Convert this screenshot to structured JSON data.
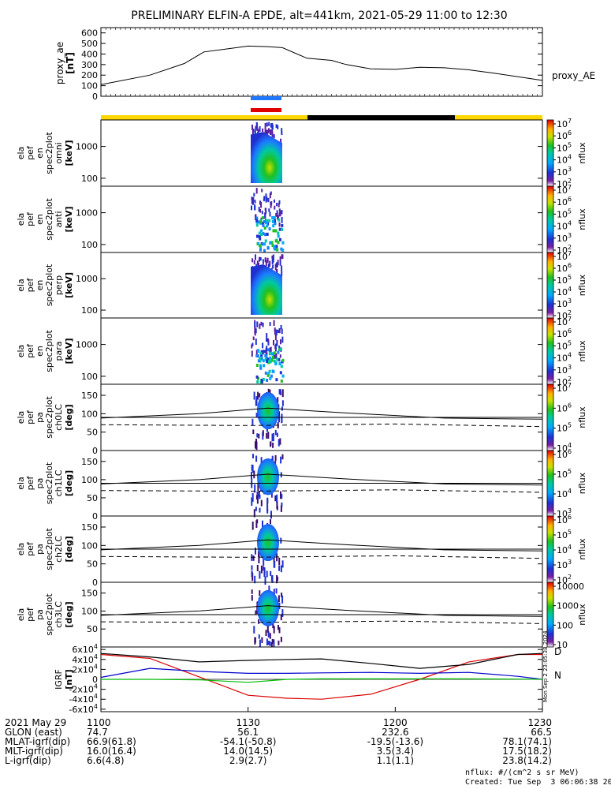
{
  "title": "PRELIMINARY ELFIN-A EPDE, alt=441km, 2021-05-29 11:00 to 12:30",
  "created": "Created: Tue Sep  3 06:06:38 2024",
  "nflux_units": "nflux: #/(cm^2 s sr MeV)",
  "side_stamp": "Mon Sep  2 23:05:38 2024",
  "colors": {
    "sunlit": "#ffd700",
    "eclipse": "#000000",
    "bar_blue": "#1e78ff",
    "bar_red": "#e00000",
    "bx": "#0000cc",
    "by": "#00bb00",
    "bz": "#dd0000",
    "bt": "#000000"
  },
  "chart_data": [
    {
      "type": "line",
      "panel": "proxy_ae",
      "ylabel": "proxy_ae\n[nT]",
      "legend": "proxy_AE",
      "ylim": [
        0,
        650
      ],
      "yticks": [
        "600",
        "500",
        "400",
        "300",
        "200",
        "100",
        "0"
      ],
      "x_minutes": [
        0,
        10,
        17,
        21,
        26,
        30,
        34,
        37,
        42,
        47,
        50,
        55,
        60,
        65,
        70,
        75,
        80,
        85,
        90
      ],
      "values": [
        110,
        200,
        310,
        420,
        450,
        475,
        470,
        460,
        360,
        340,
        300,
        260,
        255,
        275,
        270,
        250,
        220,
        185,
        150
      ]
    },
    {
      "type": "heatmap",
      "panel": "omni",
      "ylabel": [
        "ela",
        "pef",
        "en",
        "spec2plot",
        "omni",
        "[keV]"
      ],
      "yticks": [
        "1000",
        "100"
      ],
      "colorbar": {
        "label": "nflux",
        "ticks": [
          "10^7",
          "10^6",
          "10^5",
          "10^4",
          "10^3",
          "10^2"
        ]
      }
    },
    {
      "type": "heatmap",
      "panel": "anti",
      "ylabel": [
        "ela",
        "pef",
        "en",
        "spec2plot",
        "anti",
        "[keV]"
      ],
      "yticks": [
        "1000",
        "100"
      ],
      "colorbar": {
        "label": "nflux",
        "ticks": [
          "10^7",
          "10^6",
          "10^5",
          "10^4",
          "10^3",
          "10^2"
        ]
      }
    },
    {
      "type": "heatmap",
      "panel": "perp",
      "ylabel": [
        "ela",
        "pef",
        "en",
        "spec2plot",
        "perp",
        "[keV]"
      ],
      "yticks": [
        "1000",
        "100"
      ],
      "colorbar": {
        "label": "nflux",
        "ticks": [
          "10^7",
          "10^6",
          "10^5",
          "10^4",
          "10^3",
          "10^2"
        ]
      }
    },
    {
      "type": "heatmap",
      "panel": "para",
      "ylabel": [
        "ela",
        "pef",
        "en",
        "spec2plot",
        "para",
        "[keV]"
      ],
      "yticks": [
        "1000",
        "100"
      ],
      "colorbar": {
        "label": "nflux",
        "ticks": [
          "10^7",
          "10^6",
          "10^5",
          "10^4",
          "10^3",
          "10^2"
        ]
      }
    },
    {
      "type": "heatmap",
      "panel": "ch0LC",
      "ylabel": [
        "ela",
        "pef",
        "pa",
        "spec2plot",
        "ch0LC",
        "[deg]"
      ],
      "yticks": [
        "150",
        "100",
        "50",
        "0"
      ],
      "colorbar": {
        "label": "nflux",
        "ticks": [
          "10^7",
          "10^6",
          "10^5",
          "10^4"
        ]
      }
    },
    {
      "type": "heatmap",
      "panel": "ch1LC",
      "ylabel": [
        "ela",
        "pef",
        "pa",
        "spec2plot",
        "ch1LC",
        "[deg]"
      ],
      "yticks": [
        "150",
        "100",
        "50",
        "0"
      ],
      "colorbar": {
        "label": "nflux",
        "ticks": [
          "10^6",
          "10^5",
          "10^4",
          "10^3"
        ]
      }
    },
    {
      "type": "heatmap",
      "panel": "ch2LC",
      "ylabel": [
        "ela",
        "pef",
        "pa",
        "spec2plot",
        "ch2LC",
        "[deg]"
      ],
      "yticks": [
        "150",
        "100",
        "50",
        "0"
      ],
      "colorbar": {
        "label": "nflux",
        "ticks": [
          "10^6",
          "10^5",
          "10^4",
          "10^3",
          "10^2"
        ]
      }
    },
    {
      "type": "heatmap",
      "panel": "ch3LC",
      "ylabel": [
        "ela",
        "pef",
        "pa",
        "spec2plot",
        "ch3LC",
        "[deg]"
      ],
      "yticks": [
        "150",
        "100",
        "50"
      ],
      "colorbar": {
        "label": "nflux",
        "ticks": [
          "10000",
          "1000",
          "100",
          "10"
        ]
      }
    },
    {
      "type": "line",
      "panel": "igrf",
      "ylabel": [
        "IGRF",
        "[nT]"
      ],
      "ylim": [
        -65000,
        65000
      ],
      "yticks": [
        "6x10^4",
        "4x10^4",
        "2x10^4",
        "0",
        "-2x10^4",
        "-4x10^4",
        "-6x10^4"
      ],
      "legend_letters": [
        "D",
        "N"
      ],
      "x_minutes": [
        0,
        10,
        20,
        30,
        38,
        45,
        55,
        65,
        75,
        85,
        90
      ],
      "series": [
        {
          "values_key": "bz",
          "values": [
            50000,
            42000,
            5000,
            -32000,
            -38000,
            -40000,
            -30000,
            0,
            35000,
            50000,
            50000
          ]
        },
        {
          "values_key": "bt",
          "values": [
            52000,
            45000,
            35000,
            38000,
            40000,
            41000,
            32000,
            22000,
            30000,
            50000,
            52000
          ]
        },
        {
          "values_key": "bx",
          "values": [
            4000,
            22000,
            16000,
            12000,
            12000,
            13000,
            14000,
            12000,
            14000,
            6000,
            0
          ]
        },
        {
          "values_key": "by",
          "values": [
            0,
            0,
            -1000,
            -6000,
            0,
            1000,
            1000,
            1000,
            1000,
            500,
            0
          ]
        }
      ]
    }
  ],
  "x_axis": {
    "ticks": [
      "1100",
      "1130",
      "1200",
      "1230"
    ],
    "rows": [
      {
        "label": "2021 May 29",
        "values": [
          "1100",
          "1130",
          "1200",
          "1230"
        ]
      },
      {
        "label": "GLON (east)",
        "values": [
          "74.7",
          "56.1",
          "232.6",
          "66.5"
        ]
      },
      {
        "label": "MLAT-igrf(dip)",
        "values": [
          "66.9(61.8)",
          "-54.1(-50.8)",
          "-19.5(-13.6)",
          "78.1(74.1)"
        ]
      },
      {
        "label": "MLT-igrf(dip)",
        "values": [
          "16.0(16.4)",
          "14.0(14.5)",
          "3.5(3.4)",
          "17.5(18.2)"
        ]
      },
      {
        "label": "L-igrf(dip)",
        "values": [
          "6.6(4.8)",
          "2.9(2.7)",
          "1.1(1.1)",
          "23.8(14.2)"
        ]
      }
    ]
  }
}
